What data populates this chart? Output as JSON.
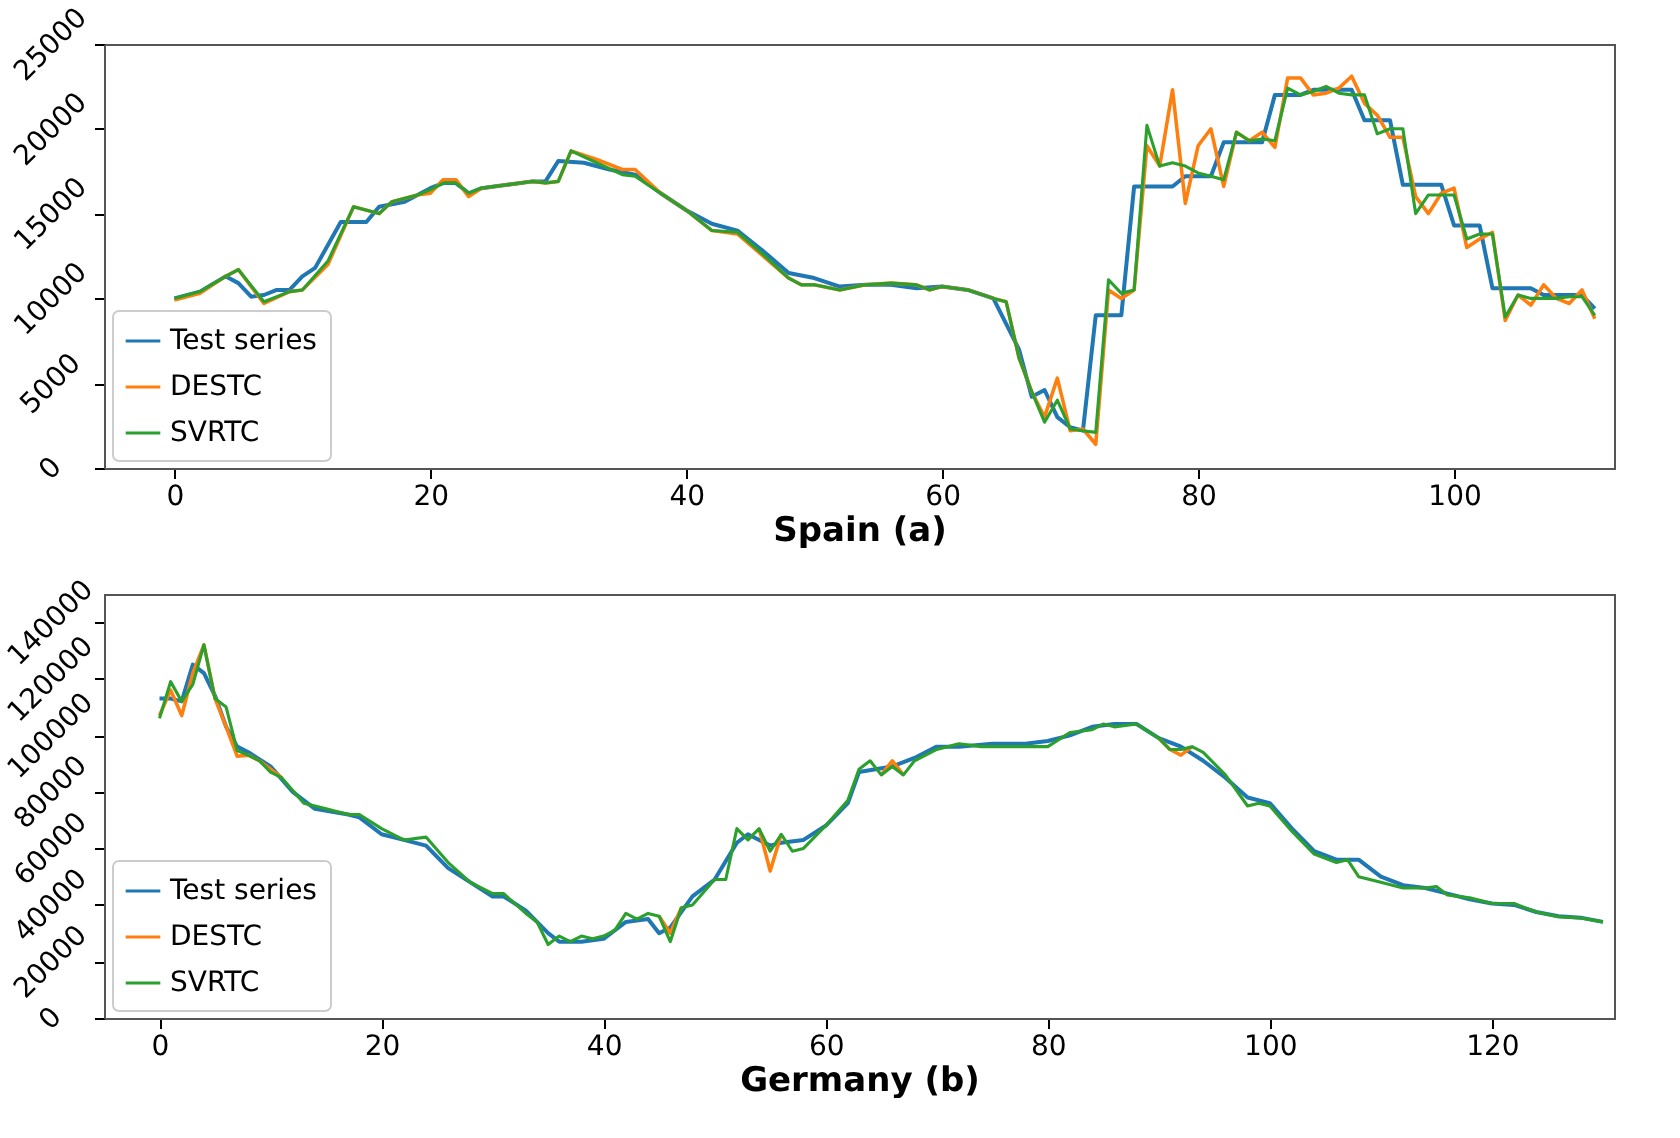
{
  "chart_data": [
    {
      "type": "line",
      "xlabel": "Spain (a)",
      "xlim": [
        -5.5,
        112.5
      ],
      "xticks": [
        0,
        20,
        40,
        60,
        80,
        100
      ],
      "ylim": [
        0,
        25000
      ],
      "yticks": [
        0,
        5000,
        10000,
        15000,
        20000,
        25000
      ],
      "legend": "bottom left",
      "line_style": "solid",
      "series": [
        {
          "name": "Test series",
          "color": "#1f77b4",
          "x": [
            0,
            2,
            4,
            5,
            6,
            7,
            8,
            9,
            10,
            11,
            13,
            15,
            16,
            18,
            20,
            21,
            22,
            23,
            24,
            26,
            28,
            29,
            30,
            32,
            34,
            36,
            38,
            40,
            42,
            44,
            46,
            48,
            50,
            52,
            54,
            56,
            58,
            60,
            62,
            64,
            66,
            67,
            68,
            69,
            70,
            71,
            72,
            74,
            75,
            78,
            79,
            81,
            82,
            85,
            86,
            88,
            89,
            92,
            93,
            95,
            96,
            99,
            100,
            102,
            103,
            106,
            107,
            110,
            111
          ],
          "values": [
            10000,
            10400,
            11300,
            10900,
            10100,
            10200,
            10500,
            10500,
            11300,
            11800,
            14500,
            14500,
            15400,
            15700,
            16500,
            16800,
            16800,
            16200,
            16500,
            16700,
            16900,
            16900,
            18100,
            18000,
            17600,
            17300,
            16200,
            15200,
            14400,
            14000,
            12800,
            11500,
            11200,
            10700,
            10800,
            10800,
            10600,
            10700,
            10500,
            10000,
            7000,
            4200,
            4600,
            3000,
            2400,
            2200,
            9000,
            9000,
            16600,
            16600,
            17200,
            17200,
            19200,
            19200,
            22000,
            22000,
            22300,
            22300,
            20500,
            20500,
            16700,
            16700,
            14300,
            14300,
            10600,
            10600,
            10200,
            10200,
            9400
          ]
        },
        {
          "name": "DESTC",
          "color": "#ff7f0e",
          "x": [
            0,
            2,
            4,
            5,
            7,
            9,
            10,
            12,
            14,
            16,
            17,
            19,
            20,
            21,
            22,
            23,
            24,
            26,
            28,
            29,
            30,
            31,
            33,
            35,
            36,
            38,
            40,
            42,
            44,
            46,
            48,
            49,
            50,
            52,
            54,
            56,
            58,
            59,
            60,
            62,
            64,
            65,
            66,
            67,
            68,
            69,
            70,
            71,
            72,
            73,
            74,
            75,
            76,
            77,
            78,
            79,
            80,
            81,
            82,
            83,
            84,
            85,
            86,
            87,
            88,
            89,
            90,
            91,
            92,
            93,
            94,
            95,
            96,
            97,
            98,
            99,
            100,
            101,
            102,
            103,
            104,
            105,
            106,
            107,
            108,
            109,
            110,
            111
          ],
          "values": [
            9900,
            10300,
            11300,
            11700,
            9700,
            10400,
            10500,
            12000,
            15400,
            15000,
            15700,
            16100,
            16200,
            17000,
            17000,
            16000,
            16500,
            16700,
            16900,
            16800,
            16900,
            18700,
            18200,
            17600,
            17600,
            16200,
            15200,
            14000,
            13800,
            12500,
            11200,
            10800,
            10800,
            10500,
            10800,
            10900,
            10800,
            10500,
            10700,
            10500,
            10000,
            9800,
            6500,
            4500,
            3000,
            5300,
            2200,
            2300,
            1400,
            10500,
            10000,
            10500,
            19000,
            17800,
            22300,
            15600,
            19000,
            20000,
            16600,
            19800,
            19300,
            19800,
            18900,
            23000,
            23000,
            22000,
            22100,
            22400,
            23100,
            21500,
            20800,
            19500,
            19500,
            16000,
            15000,
            16200,
            16500,
            13000,
            13500,
            13900,
            8700,
            10200,
            9600,
            10800,
            10000,
            9700,
            10500,
            8800
          ]
        },
        {
          "name": "SVRTC",
          "color": "#2ca02c",
          "x": [
            0,
            2,
            4,
            5,
            7,
            9,
            10,
            12,
            14,
            16,
            17,
            19,
            20,
            21,
            22,
            23,
            24,
            26,
            28,
            29,
            30,
            31,
            33,
            35,
            36,
            38,
            40,
            42,
            44,
            46,
            48,
            49,
            50,
            52,
            54,
            56,
            58,
            59,
            60,
            62,
            64,
            65,
            66,
            67,
            68,
            69,
            70,
            71,
            72,
            73,
            74,
            75,
            76,
            77,
            78,
            79,
            80,
            81,
            82,
            83,
            84,
            85,
            86,
            87,
            88,
            89,
            90,
            91,
            92,
            93,
            94,
            95,
            96,
            97,
            98,
            99,
            100,
            101,
            102,
            103,
            104,
            105,
            106,
            107,
            108,
            109,
            110,
            111
          ],
          "values": [
            10000,
            10400,
            11300,
            11700,
            9800,
            10400,
            10500,
            12200,
            15400,
            15000,
            15700,
            16100,
            16400,
            16800,
            16800,
            16200,
            16500,
            16700,
            16900,
            16800,
            16900,
            18700,
            18000,
            17300,
            17200,
            16200,
            15200,
            14000,
            13900,
            12600,
            11200,
            10800,
            10800,
            10500,
            10800,
            10900,
            10800,
            10500,
            10700,
            10500,
            10000,
            9800,
            6500,
            4500,
            2700,
            4000,
            2300,
            2200,
            2100,
            11100,
            10300,
            10500,
            20200,
            17800,
            18000,
            17800,
            17400,
            17200,
            17000,
            19800,
            19300,
            19400,
            19300,
            22400,
            22000,
            22200,
            22500,
            22100,
            22000,
            22000,
            19700,
            20000,
            20000,
            15000,
            16100,
            16100,
            16100,
            13500,
            13800,
            13800,
            8900,
            10200,
            10000,
            10000,
            10000,
            10100,
            10100,
            9000
          ]
        }
      ]
    },
    {
      "type": "line",
      "xlabel": "Germany (b)",
      "xlim": [
        -5,
        131
      ],
      "xticks": [
        0,
        20,
        40,
        60,
        80,
        100,
        120
      ],
      "ylim": [
        0,
        150000
      ],
      "yticks": [
        0,
        20000,
        40000,
        60000,
        80000,
        100000,
        120000,
        140000
      ],
      "legend": "bottom left",
      "line_style": "solid",
      "series": [
        {
          "name": "Test series",
          "color": "#1f77b4",
          "x": [
            0,
            1,
            2,
            3,
            4,
            5,
            6,
            7,
            8,
            10,
            12,
            14,
            17,
            18,
            20,
            22,
            24,
            26,
            28,
            30,
            31,
            33,
            35,
            36,
            38,
            40,
            42,
            44,
            45,
            46,
            48,
            50,
            52,
            53,
            55,
            56,
            58,
            60,
            62,
            63,
            66,
            68,
            70,
            72,
            75,
            78,
            80,
            82,
            84,
            86,
            88,
            90,
            92,
            94,
            96,
            98,
            100,
            102,
            104,
            106,
            108,
            110,
            112,
            114,
            116,
            118,
            120,
            122,
            124,
            126,
            128,
            130
          ],
          "values": [
            113000,
            113000,
            112000,
            125000,
            122000,
            114000,
            103000,
            96000,
            94000,
            89000,
            80000,
            74000,
            72000,
            71000,
            65000,
            63000,
            61000,
            53000,
            48000,
            43000,
            43000,
            38000,
            30000,
            27000,
            27000,
            28000,
            34000,
            35000,
            30000,
            32000,
            43000,
            49000,
            62000,
            65000,
            61000,
            62000,
            63000,
            68000,
            76000,
            87000,
            89000,
            92000,
            96000,
            96000,
            97000,
            97000,
            98000,
            100000,
            103000,
            104000,
            104000,
            99000,
            96000,
            91000,
            85000,
            78000,
            76000,
            67000,
            59000,
            56000,
            56000,
            50000,
            47000,
            46000,
            44000,
            42000,
            40500,
            40000,
            37500,
            36000,
            35500,
            34000
          ]
        },
        {
          "name": "DESTC",
          "color": "#ff7f0e",
          "x": [
            0,
            1,
            2,
            3,
            4,
            5,
            6,
            7,
            8,
            9,
            10,
            11,
            13,
            15,
            17,
            18,
            20,
            22,
            24,
            26,
            28,
            30,
            31,
            33,
            34,
            35,
            36,
            37,
            38,
            39,
            40,
            41,
            42,
            43,
            44,
            45,
            46,
            47,
            48,
            50,
            51,
            52,
            53,
            54,
            55,
            56,
            57,
            58,
            60,
            62,
            63,
            64,
            65,
            66,
            67,
            68,
            70,
            72,
            74,
            76,
            78,
            80,
            82,
            84,
            85,
            86,
            88,
            90,
            91,
            92,
            93
          ],
          "values": [
            107000,
            116000,
            107000,
            122000,
            132000,
            113000,
            103000,
            92600,
            93000,
            91000,
            88000,
            85000,
            null,
            null,
            null,
            null,
            null,
            null,
            null,
            null,
            null,
            null,
            null,
            null,
            null,
            null,
            null,
            null,
            null,
            null,
            null,
            null,
            null,
            null,
            null,
            36000,
            30000,
            39000,
            null,
            null,
            null,
            null,
            null,
            67000,
            52000,
            65000,
            null,
            null,
            null,
            null,
            null,
            null,
            86000,
            91000,
            86000,
            null,
            null,
            null,
            null,
            null,
            null,
            null,
            null,
            null,
            null,
            null,
            null,
            99000,
            95000,
            93000,
            96000
          ]
        },
        {
          "name": "SVRTC",
          "color": "#2ca02c",
          "x": [
            0,
            1,
            2,
            3,
            4,
            5,
            6,
            7,
            8,
            9,
            10,
            11,
            13,
            15,
            17,
            18,
            20,
            22,
            24,
            26,
            28,
            30,
            31,
            33,
            34,
            35,
            36,
            37,
            38,
            39,
            40,
            41,
            42,
            43,
            44,
            45,
            46,
            47,
            48,
            50,
            51,
            52,
            53,
            54,
            55,
            56,
            57,
            58,
            60,
            62,
            63,
            64,
            65,
            66,
            67,
            68,
            70,
            72,
            74,
            76,
            78,
            80,
            82,
            84,
            85,
            86,
            88,
            90,
            91,
            92,
            93,
            94,
            96,
            98,
            99,
            100,
            102,
            104,
            106,
            107,
            108,
            110,
            112,
            114,
            115,
            116,
            118,
            120,
            122,
            124,
            126,
            128,
            130
          ],
          "values": [
            106000,
            119000,
            112000,
            118000,
            132000,
            113000,
            110000,
            94600,
            93000,
            91000,
            87000,
            85000,
            76000,
            74000,
            72000,
            72000,
            67000,
            63000,
            64000,
            55000,
            48000,
            44000,
            44000,
            37000,
            34000,
            26000,
            29000,
            27000,
            29000,
            28000,
            29000,
            31000,
            37000,
            35000,
            37000,
            36000,
            27000,
            39000,
            40000,
            49000,
            49000,
            67000,
            63000,
            67000,
            59000,
            65000,
            59000,
            60000,
            68000,
            77000,
            88000,
            91000,
            86000,
            89000,
            86000,
            91000,
            95000,
            97000,
            96000,
            96000,
            96000,
            96000,
            101000,
            102000,
            104000,
            103000,
            104000,
            99000,
            95000,
            95000,
            96000,
            94000,
            86000,
            75000,
            76000,
            75000,
            66000,
            58000,
            55000,
            56000,
            50000,
            48000,
            46000,
            46000,
            46500,
            43500,
            42500,
            40500,
            40500,
            37500,
            35800,
            35400,
            34000
          ]
        }
      ]
    }
  ]
}
